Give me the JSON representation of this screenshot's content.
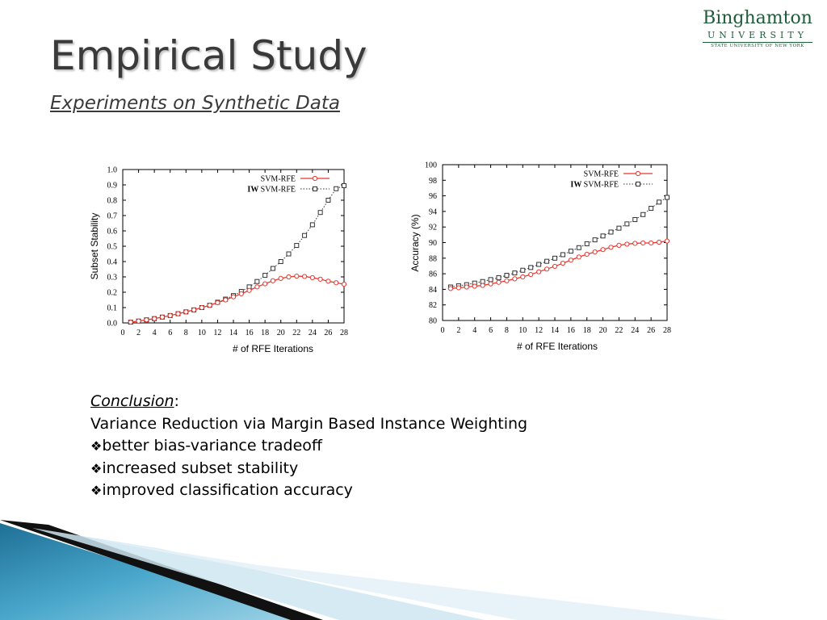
{
  "slide": {
    "title": "Empirical Study",
    "subtitle": "Experiments on Synthetic Data"
  },
  "logo": {
    "line1": "Binghamton",
    "line2": "UNIVERSITY",
    "line3": "STATE UNIVERSITY OF NEW YORK",
    "color": "#1f5c3a"
  },
  "conclusion": {
    "heading": "Conclusion",
    "heading_suffix": ":",
    "line1": "Variance Reduction via Margin Based Instance Weighting",
    "bullet_icon": "❖",
    "bullets": [
      "better bias-variance tradeoff",
      "increased subset stability",
      "improved classification accuracy"
    ]
  },
  "chart_data": [
    {
      "type": "line",
      "xlabel": "# of RFE Iterations",
      "ylabel": "Subset Stability",
      "xlim": [
        0,
        28
      ],
      "ylim": [
        0.0,
        1.0
      ],
      "xticks": [
        "0",
        "2",
        "4",
        "6",
        "8",
        "10",
        "12",
        "14",
        "16",
        "18",
        "20",
        "22",
        "24",
        "26",
        "28"
      ],
      "yticks": [
        "0.0",
        "0.1",
        "0.2",
        "0.3",
        "0.4",
        "0.5",
        "0.6",
        "0.7",
        "0.8",
        "0.9",
        "1.0"
      ],
      "legend_position": "top-right",
      "x": [
        1,
        2,
        3,
        4,
        5,
        6,
        7,
        8,
        9,
        10,
        11,
        12,
        13,
        14,
        15,
        16,
        17,
        18,
        19,
        20,
        21,
        22,
        23,
        24,
        25,
        26,
        27,
        28
      ],
      "series": [
        {
          "name": "SVM-RFE",
          "name_prefix": "",
          "color": "#e8382f",
          "marker": "circle",
          "values": [
            0.005,
            0.012,
            0.02,
            0.028,
            0.038,
            0.048,
            0.06,
            0.072,
            0.085,
            0.1,
            0.115,
            0.132,
            0.15,
            0.17,
            0.19,
            0.212,
            0.235,
            0.255,
            0.275,
            0.29,
            0.3,
            0.305,
            0.303,
            0.295,
            0.285,
            0.272,
            0.262,
            0.252
          ]
        },
        {
          "name": "SVM-RFE",
          "name_prefix": "IW",
          "color": "#333333",
          "marker": "square",
          "values": [
            0.005,
            0.012,
            0.02,
            0.028,
            0.038,
            0.048,
            0.06,
            0.072,
            0.085,
            0.1,
            0.115,
            0.135,
            0.155,
            0.178,
            0.205,
            0.235,
            0.27,
            0.31,
            0.355,
            0.4,
            0.45,
            0.505,
            0.57,
            0.64,
            0.72,
            0.8,
            0.875,
            0.895
          ]
        }
      ]
    },
    {
      "type": "line",
      "xlabel": "# of RFE Iterations",
      "ylabel": "Accuracy (%)",
      "xlim": [
        0,
        28
      ],
      "ylim": [
        80,
        100
      ],
      "xticks": [
        "0",
        "2",
        "4",
        "6",
        "8",
        "10",
        "12",
        "14",
        "16",
        "18",
        "20",
        "22",
        "24",
        "26",
        "28"
      ],
      "yticks": [
        "80",
        "82",
        "84",
        "86",
        "88",
        "90",
        "92",
        "94",
        "96",
        "98",
        "100"
      ],
      "legend_position": "top-right",
      "x": [
        1,
        2,
        3,
        4,
        5,
        6,
        7,
        8,
        9,
        10,
        11,
        12,
        13,
        14,
        15,
        16,
        17,
        18,
        19,
        20,
        21,
        22,
        23,
        24,
        25,
        26,
        27,
        28
      ],
      "series": [
        {
          "name": "SVM-RFE",
          "name_prefix": "",
          "color": "#e8382f",
          "marker": "circle",
          "values": [
            84.1,
            84.2,
            84.3,
            84.4,
            84.5,
            84.7,
            84.9,
            85.1,
            85.35,
            85.6,
            85.9,
            86.25,
            86.6,
            86.95,
            87.35,
            87.75,
            88.15,
            88.5,
            88.8,
            89.1,
            89.4,
            89.65,
            89.8,
            89.9,
            89.95,
            89.95,
            90.05,
            90.2
          ]
        },
        {
          "name": "SVM-RFE",
          "name_prefix": "IW",
          "color": "#333333",
          "marker": "square",
          "values": [
            84.3,
            84.45,
            84.6,
            84.8,
            85.0,
            85.25,
            85.5,
            85.8,
            86.1,
            86.45,
            86.8,
            87.2,
            87.6,
            88.0,
            88.45,
            88.9,
            89.35,
            89.85,
            90.35,
            90.85,
            91.35,
            91.85,
            92.4,
            92.95,
            93.6,
            94.4,
            95.2,
            95.8
          ]
        }
      ]
    }
  ]
}
